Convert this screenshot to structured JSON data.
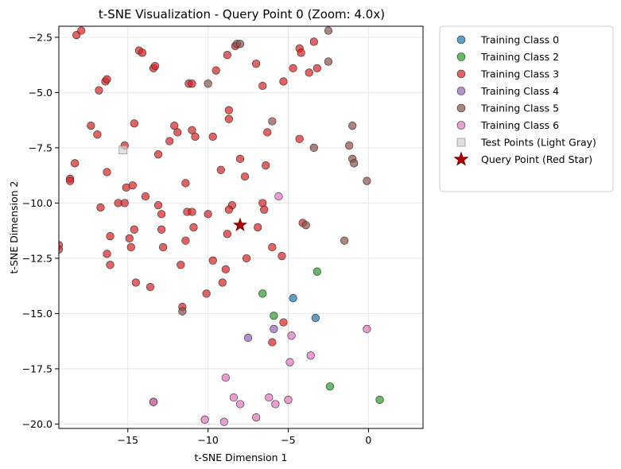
{
  "chart_data": {
    "type": "scatter",
    "title": "t-SNE Visualization - Query Point 0 (Zoom: 4.0x)",
    "xlabel": "t-SNE Dimension 1",
    "ylabel": "t-SNE Dimension 2",
    "xlim": [
      -19.3,
      3.4
    ],
    "ylim": [
      -20.2,
      -2.0
    ],
    "xticks": [
      -15,
      -10,
      -5,
      0
    ],
    "xtick_labels": [
      "−15",
      "−10",
      "−5",
      "0"
    ],
    "yticks": [
      -2.5,
      -5.0,
      -7.5,
      -10.0,
      -12.5,
      -15.0,
      -17.5,
      -20.0
    ],
    "ytick_labels": [
      "−2.5",
      "−5.0",
      "−7.5",
      "−10.0",
      "−12.5",
      "−15.0",
      "−17.5",
      "−20.0"
    ],
    "grid": true,
    "legend_position": "outside-right-top",
    "series": [
      {
        "name": "Training Class 0",
        "color": "#1f77b4",
        "marker": "circle",
        "points": [
          [
            -4.7,
            -14.3
          ],
          [
            -3.3,
            -15.2
          ]
        ]
      },
      {
        "name": "Training Class 2",
        "color": "#2ca02c",
        "marker": "circle",
        "points": [
          [
            -6.6,
            -14.1
          ],
          [
            -5.9,
            -15.1
          ],
          [
            -3.2,
            -13.1
          ],
          [
            -2.4,
            -18.3
          ],
          [
            0.7,
            -18.9
          ]
        ]
      },
      {
        "name": "Training Class 3",
        "color": "#d62728",
        "marker": "circle",
        "points": [
          [
            -18.2,
            -2.4
          ],
          [
            -17.9,
            -2.2
          ],
          [
            -14.3,
            -3.1
          ],
          [
            -14.1,
            -3.2
          ],
          [
            -13.4,
            -3.9
          ],
          [
            -13.3,
            -3.8
          ],
          [
            -11.2,
            -4.6
          ],
          [
            -11.0,
            -4.6
          ],
          [
            -16.8,
            -4.9
          ],
          [
            -16.4,
            -4.5
          ],
          [
            -16.3,
            -4.4
          ],
          [
            -8.8,
            -3.3
          ],
          [
            -8.3,
            -2.9
          ],
          [
            -7.0,
            -3.7
          ],
          [
            -6.6,
            -4.7
          ],
          [
            -9.5,
            -4.0
          ],
          [
            -5.3,
            -4.5
          ],
          [
            -4.7,
            -3.9
          ],
          [
            -4.3,
            -3.0
          ],
          [
            -4.2,
            -3.2
          ],
          [
            -3.7,
            -4.1
          ],
          [
            -3.4,
            -2.7
          ],
          [
            -3.2,
            -3.9
          ],
          [
            -17.3,
            -6.5
          ],
          [
            -16.9,
            -6.9
          ],
          [
            -14.6,
            -6.4
          ],
          [
            -15.2,
            -7.4
          ],
          [
            -12.1,
            -6.5
          ],
          [
            -11.9,
            -6.8
          ],
          [
            -12.4,
            -7.2
          ],
          [
            -13.1,
            -7.8
          ],
          [
            -11.0,
            -6.7
          ],
          [
            -10.8,
            -7.0
          ],
          [
            -8.7,
            -5.8
          ],
          [
            -8.7,
            -6.2
          ],
          [
            -9.7,
            -7.0
          ],
          [
            -8.0,
            -8.0
          ],
          [
            -6.3,
            -6.8
          ],
          [
            -4.3,
            -7.1
          ],
          [
            -18.3,
            -8.2
          ],
          [
            -18.6,
            -8.9
          ],
          [
            -18.6,
            -9.0
          ],
          [
            -16.3,
            -8.6
          ],
          [
            -15.6,
            -10.0
          ],
          [
            -15.2,
            -10.0
          ],
          [
            -15.1,
            -9.3
          ],
          [
            -14.7,
            -9.2
          ],
          [
            -13.9,
            -9.7
          ],
          [
            -13.1,
            -10.1
          ],
          [
            -12.9,
            -10.5
          ],
          [
            -16.7,
            -10.2
          ],
          [
            -11.4,
            -9.1
          ],
          [
            -11.3,
            -10.4
          ],
          [
            -11.0,
            -10.4
          ],
          [
            -9.2,
            -8.5
          ],
          [
            -8.5,
            -10.1
          ],
          [
            -8.7,
            -10.3
          ],
          [
            -6.6,
            -10.0
          ],
          [
            -7.7,
            -8.8
          ],
          [
            -6.4,
            -8.3
          ],
          [
            -6.5,
            -10.3
          ],
          [
            -19.3,
            -11.9
          ],
          [
            -19.3,
            -12.1
          ],
          [
            -16.1,
            -11.5
          ],
          [
            -14.9,
            -11.6
          ],
          [
            -14.6,
            -11.2
          ],
          [
            -14.8,
            -12.0
          ],
          [
            -12.9,
            -11.2
          ],
          [
            -12.8,
            -12.0
          ],
          [
            -11.4,
            -11.7
          ],
          [
            -10.9,
            -11.1
          ],
          [
            -16.3,
            -12.3
          ],
          [
            -16.1,
            -12.8
          ],
          [
            -11.7,
            -12.8
          ],
          [
            -10.0,
            -10.5
          ],
          [
            -9.7,
            -12.6
          ],
          [
            -8.8,
            -11.4
          ],
          [
            -8.9,
            -13.0
          ],
          [
            -9.1,
            -13.6
          ],
          [
            -7.6,
            -12.5
          ],
          [
            -6.9,
            -11.1
          ],
          [
            -6.0,
            -12.0
          ],
          [
            -5.4,
            -12.4
          ],
          [
            -4.1,
            -10.9
          ],
          [
            -14.5,
            -13.6
          ],
          [
            -13.6,
            -13.8
          ],
          [
            -11.6,
            -14.7
          ],
          [
            -10.1,
            -14.1
          ],
          [
            -5.3,
            -15.4
          ],
          [
            -6.0,
            -16.3
          ]
        ]
      },
      {
        "name": "Training Class 4",
        "color": "#9467bd",
        "marker": "circle",
        "points": [
          [
            -7.5,
            -16.1
          ],
          [
            -5.9,
            -15.7
          ]
        ]
      },
      {
        "name": "Training Class 5",
        "color": "#8c564b",
        "marker": "circle",
        "points": [
          [
            -2.5,
            -2.2
          ],
          [
            -8.2,
            -2.8
          ],
          [
            -8.0,
            -2.8
          ],
          [
            -10.0,
            -4.6
          ],
          [
            -2.5,
            -3.6
          ],
          [
            -6.0,
            -6.3
          ],
          [
            -3.4,
            -7.5
          ],
          [
            -1.0,
            -6.5
          ],
          [
            -1.2,
            -7.4
          ],
          [
            -1.0,
            -8.0
          ],
          [
            -0.9,
            -8.2
          ],
          [
            -0.1,
            -9.0
          ],
          [
            -3.9,
            -11.0
          ],
          [
            -1.5,
            -11.7
          ],
          [
            -11.6,
            -14.9
          ],
          [
            -13.4,
            -19.0
          ]
        ]
      },
      {
        "name": "Training Class 6",
        "color": "#e377c2",
        "marker": "circle",
        "points": [
          [
            -5.6,
            -9.7
          ],
          [
            -0.1,
            -15.7
          ],
          [
            -4.8,
            -16.0
          ],
          [
            -3.6,
            -16.9
          ],
          [
            -4.9,
            -17.2
          ],
          [
            -8.9,
            -17.9
          ],
          [
            -8.4,
            -18.8
          ],
          [
            -8.0,
            -19.1
          ],
          [
            -6.2,
            -18.8
          ],
          [
            -5.8,
            -19.1
          ],
          [
            -5.0,
            -18.9
          ],
          [
            -13.4,
            -19.0
          ],
          [
            -10.2,
            -19.8
          ],
          [
            -9.0,
            -19.9
          ],
          [
            -7.0,
            -19.7
          ]
        ]
      },
      {
        "name": "Test Points (Light Gray)",
        "color": "#d3d3d3",
        "marker": "square",
        "points": [
          [
            -15.3,
            -7.6
          ]
        ]
      },
      {
        "name": "Query Point (Red Star)",
        "color": "#b30000",
        "marker": "star",
        "points": [
          [
            -8.0,
            -11.0
          ]
        ]
      }
    ]
  }
}
